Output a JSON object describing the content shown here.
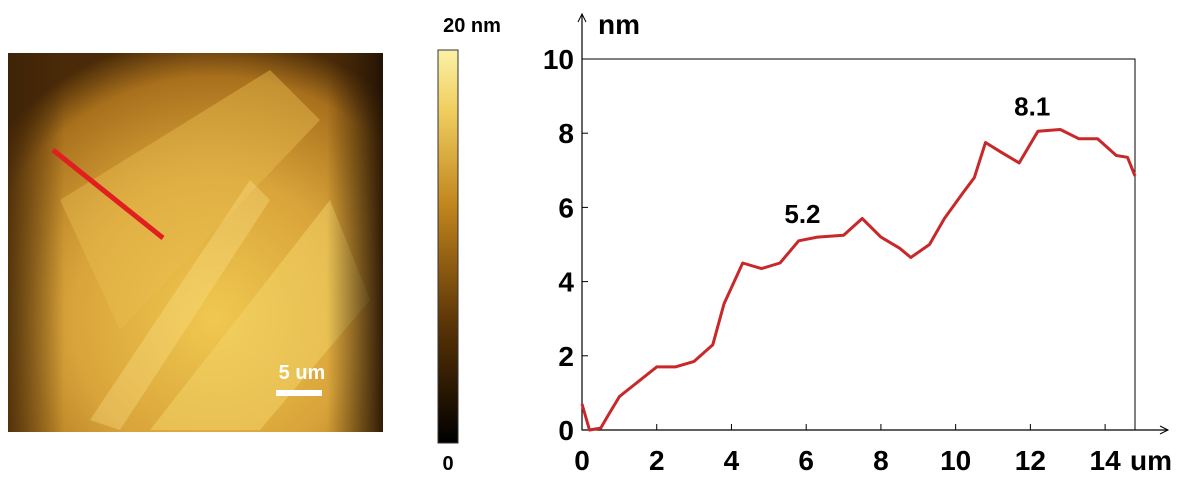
{
  "afm_image": {
    "scale_bar_label": "5 um"
  },
  "colorbar": {
    "max_label": "20 nm",
    "min_label": "0"
  },
  "chart_data": {
    "type": "line",
    "y_axis_label": "nm",
    "x_axis_label": "um",
    "x": [
      0,
      0.2,
      0.5,
      0.7,
      1.0,
      1.5,
      2.0,
      2.5,
      3.0,
      3.5,
      3.8,
      4.3,
      4.8,
      5.3,
      5.8,
      6.3,
      7.0,
      7.5,
      8.0,
      8.5,
      8.8,
      9.3,
      9.7,
      10.2,
      10.5,
      10.8,
      11.2,
      11.7,
      12.2,
      12.8,
      13.3,
      13.8,
      14.3,
      14.6,
      14.8
    ],
    "values": [
      0.7,
      0.0,
      0.05,
      0.4,
      0.9,
      1.3,
      1.7,
      1.7,
      1.85,
      2.3,
      3.4,
      4.5,
      4.35,
      4.5,
      5.1,
      5.2,
      5.25,
      5.7,
      5.2,
      4.9,
      4.65,
      5.0,
      5.7,
      6.4,
      6.8,
      7.75,
      7.5,
      7.2,
      8.05,
      8.1,
      7.85,
      7.85,
      7.4,
      7.35,
      6.85
    ],
    "color": "#c8282a",
    "annotations": [
      {
        "text": "5.2",
        "x": 5.9,
        "y": 5.2
      },
      {
        "text": "8.1",
        "x": 12.05,
        "y": 8.1
      }
    ],
    "xlim": [
      0,
      14.8
    ],
    "xticks": [
      0,
      2,
      4,
      6,
      8,
      10,
      12,
      14
    ],
    "ylim": [
      0,
      10
    ],
    "yticks": [
      0,
      2,
      4,
      6,
      8,
      10
    ],
    "grid": false
  }
}
